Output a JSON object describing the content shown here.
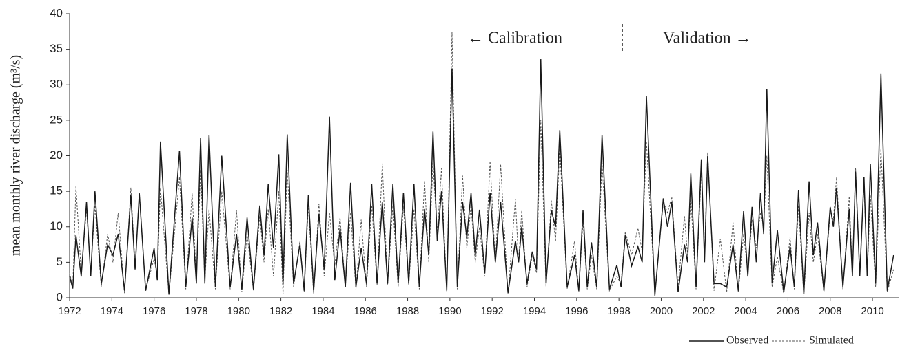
{
  "chart_data": {
    "type": "line",
    "y_label": "mean monthly river discharge (m³/s)",
    "annotations": [
      "← Calibration",
      "Validation →"
    ],
    "x": [
      1972.0,
      1972.15,
      1972.3,
      1972.55,
      1972.8,
      1973.0,
      1973.2,
      1973.5,
      1973.8,
      1974.05,
      1974.3,
      1974.6,
      1974.9,
      1975.1,
      1975.3,
      1975.6,
      1976.0,
      1976.15,
      1976.3,
      1976.7,
      1977.2,
      1977.5,
      1977.8,
      1978.0,
      1978.2,
      1978.4,
      1978.6,
      1978.9,
      1979.2,
      1979.6,
      1979.9,
      1980.15,
      1980.4,
      1980.7,
      1981.0,
      1981.2,
      1981.4,
      1981.65,
      1981.9,
      1982.1,
      1982.3,
      1982.6,
      1982.9,
      1983.1,
      1983.3,
      1983.55,
      1983.8,
      1984.05,
      1984.3,
      1984.55,
      1984.8,
      1985.05,
      1985.3,
      1985.55,
      1985.8,
      1986.05,
      1986.3,
      1986.55,
      1986.8,
      1987.05,
      1987.3,
      1987.55,
      1987.8,
      1988.05,
      1988.3,
      1988.55,
      1988.8,
      1989.0,
      1989.2,
      1989.4,
      1989.6,
      1989.85,
      1990.1,
      1990.35,
      1990.6,
      1990.8,
      1991.0,
      1991.2,
      1991.4,
      1991.65,
      1991.9,
      1992.15,
      1992.4,
      1992.75,
      1993.1,
      1993.25,
      1993.4,
      1993.65,
      1993.9,
      1994.1,
      1994.3,
      1994.55,
      1994.8,
      1995.0,
      1995.2,
      1995.55,
      1995.9,
      1996.1,
      1996.3,
      1996.5,
      1996.7,
      1996.95,
      1997.2,
      1997.55,
      1997.9,
      1998.1,
      1998.3,
      1998.6,
      1998.9,
      1999.1,
      1999.3,
      1999.7,
      2000.1,
      2000.3,
      2000.5,
      2000.8,
      2001.1,
      2001.25,
      2001.4,
      2001.65,
      2001.9,
      2002.05,
      2002.2,
      2002.5,
      2002.8,
      2003.1,
      2003.4,
      2003.65,
      2003.9,
      2004.1,
      2004.3,
      2004.5,
      2004.7,
      2004.85,
      2005.0,
      2005.25,
      2005.5,
      2005.8,
      2006.1,
      2006.3,
      2006.5,
      2006.75,
      2007.0,
      2007.2,
      2007.4,
      2007.7,
      2008.0,
      2008.15,
      2008.3,
      2008.6,
      2008.9,
      2009.05,
      2009.2,
      2009.4,
      2009.6,
      2009.75,
      2009.9,
      2010.15,
      2010.4,
      2010.7,
      2011.0
    ],
    "series": [
      {
        "name": "Observed",
        "color": "#1a1a1a",
        "dash": false,
        "values": [
          3,
          1.3,
          8.8,
          3,
          13.5,
          3,
          15,
          2,
          7.5,
          6,
          9,
          1,
          14.5,
          4,
          14.7,
          1,
          7,
          2.5,
          22,
          0.5,
          20.7,
          1.5,
          11.3,
          2,
          22.5,
          2,
          22.9,
          1.5,
          20,
          1.5,
          9,
          1.2,
          11.3,
          1.2,
          13,
          6,
          16,
          7,
          20.2,
          2,
          23,
          2,
          7.5,
          1,
          14.5,
          1,
          11.8,
          4,
          25.5,
          2.5,
          9.8,
          1.5,
          16.2,
          1.5,
          7,
          2,
          16,
          2,
          13.5,
          2,
          16,
          2,
          14.8,
          2,
          16,
          1.5,
          12.5,
          6,
          23.4,
          8,
          15,
          1,
          32.3,
          1.5,
          13.5,
          8.5,
          14.8,
          6,
          12.4,
          3.5,
          14.8,
          5,
          13.5,
          0.7,
          8,
          5,
          10,
          2,
          6.5,
          4,
          33.6,
          2,
          12.3,
          10,
          23.6,
          1.5,
          6,
          1,
          12.3,
          1.5,
          7.8,
          1.5,
          22.9,
          1.2,
          4.6,
          1.5,
          8.8,
          4.5,
          7.2,
          5,
          28.4,
          0.3,
          14,
          10,
          13.5,
          0.8,
          7.5,
          5,
          17.5,
          1.5,
          19.5,
          5,
          20,
          2,
          2,
          1.5,
          7.5,
          1,
          12.2,
          3,
          12.8,
          5,
          14.8,
          9,
          29.4,
          2,
          9.5,
          0.8,
          7.2,
          1.5,
          15.2,
          0.5,
          16.4,
          6,
          10.6,
          1,
          12.8,
          10,
          15.5,
          1.5,
          12.5,
          3,
          17.8,
          3,
          17,
          3,
          18.8,
          2,
          31.6,
          1,
          6
        ]
      },
      {
        "name": "Simulated",
        "color": "#555555",
        "dash": true,
        "values": [
          3.5,
          1.5,
          15.7,
          3.5,
          12.5,
          3.5,
          13,
          1.5,
          9,
          5,
          12,
          0.6,
          15.5,
          4.5,
          14.8,
          1.2,
          5.5,
          3,
          15.5,
          0.4,
          17,
          1.2,
          14.8,
          2.5,
          18,
          2.2,
          12.5,
          1.2,
          15,
          1.2,
          12.3,
          0.8,
          9,
          1,
          11.5,
          5,
          12.5,
          3,
          15,
          0.5,
          18,
          1.5,
          8,
          0.8,
          13,
          0.5,
          13.2,
          3,
          12,
          4.5,
          11.3,
          1.5,
          12,
          1.2,
          11,
          1.5,
          13,
          1.8,
          18.9,
          1.8,
          13,
          1.5,
          13,
          1.8,
          12.5,
          1.2,
          16.5,
          5,
          19,
          9,
          18.2,
          0.9,
          37.4,
          1.2,
          17.2,
          7,
          13,
          5,
          10,
          3,
          19.2,
          5,
          18.8,
          0.5,
          13.9,
          5,
          12.3,
          1.5,
          6,
          3.5,
          25,
          1.5,
          13.7,
          8,
          21,
          1.2,
          8,
          0.8,
          10.8,
          1.2,
          6,
          1.2,
          19,
          1,
          3,
          2,
          9.3,
          6,
          9.8,
          6.5,
          22,
          0.8,
          13.5,
          12,
          14.2,
          1.5,
          11.5,
          6,
          14,
          1.2,
          18,
          6,
          20.5,
          1,
          8.3,
          0.8,
          10.6,
          0.7,
          9,
          3.5,
          11,
          7,
          12,
          10,
          20,
          1.5,
          5.8,
          0.6,
          8.5,
          1.2,
          13,
          0.3,
          12,
          5,
          9,
          0.8,
          12,
          11,
          17,
          1.2,
          14.3,
          3.5,
          18.3,
          3.5,
          16,
          3,
          14.5,
          1.5,
          21,
          0.8,
          4
        ]
      }
    ],
    "xlim": [
      1972,
      2011.27
    ],
    "xticks": [
      1972,
      1974,
      1976,
      1978,
      1980,
      1982,
      1984,
      1986,
      1988,
      1990,
      1992,
      1994,
      1996,
      1998,
      2000,
      2002,
      2004,
      2006,
      2008,
      2010
    ],
    "ylim": [
      0,
      40
    ],
    "yticks": [
      0,
      5,
      10,
      15,
      20,
      25,
      30,
      35,
      40
    ],
    "grid": false,
    "legend": "bottom-right"
  }
}
